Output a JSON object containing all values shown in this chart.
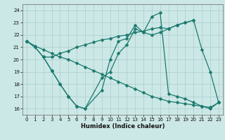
{
  "xlabel": "Humidex (Indice chaleur)",
  "bg_color": "#cce8e6",
  "grid_color": "#aacccc",
  "line_color": "#1a7a6e",
  "xlim": [
    -0.5,
    23.5
  ],
  "ylim": [
    15.5,
    24.5
  ],
  "yticks": [
    16,
    17,
    18,
    19,
    20,
    21,
    22,
    23,
    24
  ],
  "xticks": [
    0,
    1,
    2,
    3,
    4,
    5,
    6,
    7,
    8,
    9,
    10,
    11,
    12,
    13,
    14,
    15,
    16,
    17,
    18,
    19,
    20,
    21,
    22,
    23
  ],
  "series1_x": [
    0,
    1,
    2,
    3,
    4,
    5,
    6,
    7,
    8,
    9,
    10,
    11,
    12,
    13,
    14,
    15,
    16,
    17,
    18,
    19,
    20,
    21,
    22,
    23
  ],
  "series1_y": [
    21.5,
    21.1,
    20.8,
    20.5,
    20.2,
    20.0,
    19.7,
    19.4,
    19.1,
    18.8,
    18.5,
    18.2,
    17.9,
    17.6,
    17.3,
    17.0,
    16.8,
    16.6,
    16.5,
    16.4,
    16.3,
    16.2,
    16.1,
    16.5
  ],
  "series2_x": [
    0,
    1,
    2,
    3,
    4,
    5,
    6,
    7,
    9,
    10,
    11,
    12,
    13,
    14,
    15,
    16,
    17,
    18,
    19,
    20,
    21,
    22,
    23
  ],
  "series2_y": [
    21.5,
    21.0,
    20.2,
    19.1,
    18.0,
    17.0,
    16.2,
    16.0,
    17.5,
    20.0,
    21.5,
    21.7,
    22.8,
    22.2,
    22.0,
    22.2,
    22.5,
    22.8,
    23.0,
    23.2,
    20.8,
    19.0,
    16.5
  ],
  "series3_x": [
    2,
    3,
    4,
    5,
    6,
    7,
    9,
    10,
    11,
    12,
    13,
    14,
    15,
    16,
    17,
    18,
    19,
    20,
    21,
    22,
    23
  ],
  "series3_y": [
    20.2,
    19.1,
    18.0,
    17.0,
    16.2,
    16.0,
    18.5,
    19.0,
    20.5,
    21.2,
    22.5,
    22.2,
    23.5,
    23.8,
    17.2,
    17.0,
    16.8,
    16.5,
    16.2,
    16.0,
    16.5
  ],
  "series4_x": [
    0,
    1,
    2,
    3,
    4,
    5,
    6,
    7,
    8,
    9,
    10,
    11,
    12,
    13,
    14,
    15,
    16,
    17,
    18,
    19,
    20
  ],
  "series4_y": [
    21.5,
    21.0,
    20.2,
    20.2,
    20.5,
    20.7,
    21.0,
    21.2,
    21.4,
    21.6,
    21.7,
    21.9,
    22.0,
    22.2,
    22.3,
    22.5,
    22.6,
    22.5,
    22.8,
    23.0,
    23.2
  ]
}
